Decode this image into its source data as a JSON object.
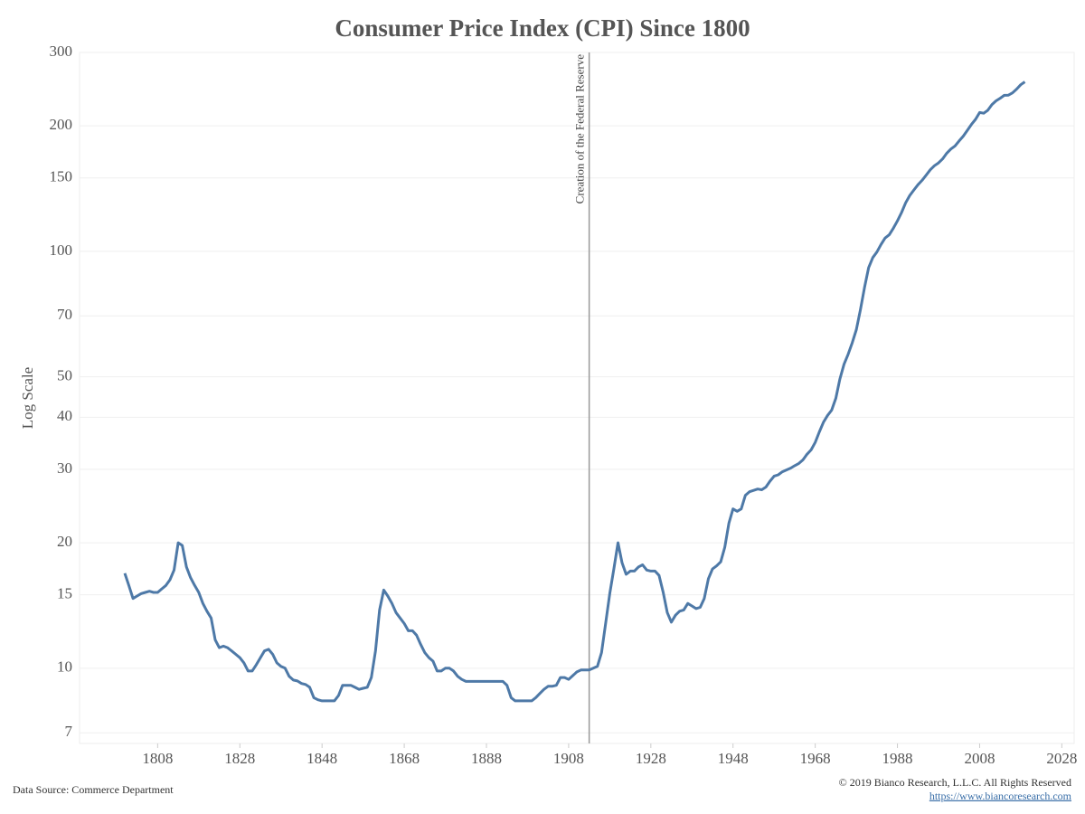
{
  "chart_data": {
    "type": "line",
    "title": "Consumer Price Index (CPI) Since 1800",
    "y_label": "Log Scale",
    "log_scale": true,
    "grid": true,
    "xlim": [
      1789,
      2031
    ],
    "ylim": [
      6.6,
      300
    ],
    "xticks": [
      1808,
      1828,
      1848,
      1868,
      1888,
      1908,
      1928,
      1948,
      1968,
      1988,
      2008,
      2028
    ],
    "yticks": [
      7,
      10,
      15,
      20,
      30,
      40,
      50,
      70,
      100,
      150,
      200,
      300
    ],
    "annotations": [
      {
        "text": "Creation of the Federal Reserve",
        "x": 1913
      }
    ],
    "x": [
      1800,
      1801,
      1802,
      1803,
      1804,
      1805,
      1806,
      1807,
      1808,
      1809,
      1810,
      1811,
      1812,
      1813,
      1814,
      1815,
      1816,
      1817,
      1818,
      1819,
      1820,
      1821,
      1822,
      1823,
      1824,
      1825,
      1826,
      1827,
      1828,
      1829,
      1830,
      1831,
      1832,
      1833,
      1834,
      1835,
      1836,
      1837,
      1838,
      1839,
      1840,
      1841,
      1842,
      1843,
      1844,
      1845,
      1846,
      1847,
      1848,
      1849,
      1850,
      1851,
      1852,
      1853,
      1854,
      1855,
      1856,
      1857,
      1858,
      1859,
      1860,
      1861,
      1862,
      1863,
      1864,
      1865,
      1866,
      1867,
      1868,
      1869,
      1870,
      1871,
      1872,
      1873,
      1874,
      1875,
      1876,
      1877,
      1878,
      1879,
      1880,
      1881,
      1882,
      1883,
      1884,
      1885,
      1886,
      1887,
      1888,
      1889,
      1890,
      1891,
      1892,
      1893,
      1894,
      1895,
      1896,
      1897,
      1898,
      1899,
      1900,
      1901,
      1902,
      1903,
      1904,
      1905,
      1906,
      1907,
      1908,
      1909,
      1910,
      1911,
      1912,
      1913,
      1914,
      1915,
      1916,
      1917,
      1918,
      1919,
      1920,
      1921,
      1922,
      1923,
      1924,
      1925,
      1926,
      1927,
      1928,
      1929,
      1930,
      1931,
      1932,
      1933,
      1934,
      1935,
      1936,
      1937,
      1938,
      1939,
      1940,
      1941,
      1942,
      1943,
      1944,
      1945,
      1946,
      1947,
      1948,
      1949,
      1950,
      1951,
      1952,
      1953,
      1954,
      1955,
      1956,
      1957,
      1958,
      1959,
      1960,
      1961,
      1962,
      1963,
      1964,
      1965,
      1966,
      1967,
      1968,
      1969,
      1970,
      1971,
      1972,
      1973,
      1974,
      1975,
      1976,
      1977,
      1978,
      1979,
      1980,
      1981,
      1982,
      1983,
      1984,
      1985,
      1986,
      1987,
      1988,
      1989,
      1990,
      1991,
      1992,
      1993,
      1994,
      1995,
      1996,
      1997,
      1998,
      1999,
      2000,
      2001,
      2002,
      2003,
      2004,
      2005,
      2006,
      2007,
      2008,
      2009,
      2010,
      2011,
      2012,
      2013,
      2014,
      2015,
      2016,
      2017,
      2018,
      2019
    ],
    "series": [
      {
        "name": "CPI",
        "color": "#4e79a7",
        "values": [
          16.9,
          15.8,
          14.7,
          14.9,
          15.1,
          15.2,
          15.3,
          15.2,
          15.2,
          15.5,
          15.8,
          16.3,
          17.2,
          20,
          19.7,
          17.5,
          16.5,
          15.8,
          15.2,
          14.3,
          13.7,
          13.2,
          11.7,
          11.2,
          11.3,
          11.2,
          11.0,
          10.8,
          10.6,
          10.3,
          9.85,
          9.85,
          10.2,
          10.6,
          11.0,
          11.1,
          10.8,
          10.3,
          10.1,
          10.0,
          9.56,
          9.37,
          9.32,
          9.19,
          9.14,
          9.0,
          8.5,
          8.4,
          8.35,
          8.35,
          8.35,
          8.35,
          8.6,
          9.1,
          9.1,
          9.1,
          9.0,
          8.9,
          8.95,
          9.0,
          9.5,
          11,
          13.8,
          15.4,
          14.9,
          14.3,
          13.6,
          13.2,
          12.8,
          12.3,
          12.3,
          12,
          11.4,
          10.9,
          10.6,
          10.4,
          9.85,
          9.85,
          10,
          10,
          9.85,
          9.56,
          9.4,
          9.3,
          9.3,
          9.3,
          9.3,
          9.3,
          9.3,
          9.3,
          9.3,
          9.3,
          9.3,
          9.1,
          8.5,
          8.35,
          8.35,
          8.35,
          8.35,
          8.35,
          8.5,
          8.7,
          8.9,
          9.05,
          9.05,
          9.1,
          9.5,
          9.5,
          9.4,
          9.6,
          9.8,
          9.9,
          9.9,
          9.9,
          10,
          10.1,
          10.9,
          12.8,
          15.1,
          17.3,
          20,
          17.9,
          16.8,
          17.1,
          17.1,
          17.5,
          17.7,
          17.2,
          17.1,
          17.1,
          16.7,
          15.2,
          13.6,
          12.9,
          13.4,
          13.7,
          13.8,
          14.3,
          14.1,
          13.9,
          14,
          14.7,
          16.4,
          17.3,
          17.6,
          18,
          19.5,
          22.3,
          24.1,
          23.8,
          24.1,
          26,
          26.5,
          26.7,
          26.9,
          26.8,
          27.2,
          28.1,
          28.9,
          29.1,
          29.6,
          29.9,
          30.2,
          30.6,
          31,
          31.6,
          32.6,
          33.4,
          34.8,
          36.9,
          38.9,
          40.4,
          41.6,
          44.4,
          49.4,
          53.6,
          56.6,
          60.3,
          64.9,
          72.4,
          82,
          91.4,
          96.6,
          99.6,
          103.9,
          107.6,
          109.6,
          113.6,
          118.3,
          123.9,
          130.7,
          136.2,
          140.3,
          144.5,
          148,
          152.4,
          156.9,
          160.5,
          163,
          166.6,
          172,
          176,
          179,
          184,
          188.9,
          195,
          201.6,
          207.3,
          215.3,
          214.5,
          218,
          225,
          229.6,
          233,
          236.7,
          237,
          240,
          245,
          251,
          255
        ]
      }
    ]
  },
  "footer": {
    "source": "Data Source: Commerce Department",
    "copyright": "© 2019 Bianco Research, L.L.C. All Rights Reserved",
    "link": "https://www.biancoresearch.com"
  }
}
